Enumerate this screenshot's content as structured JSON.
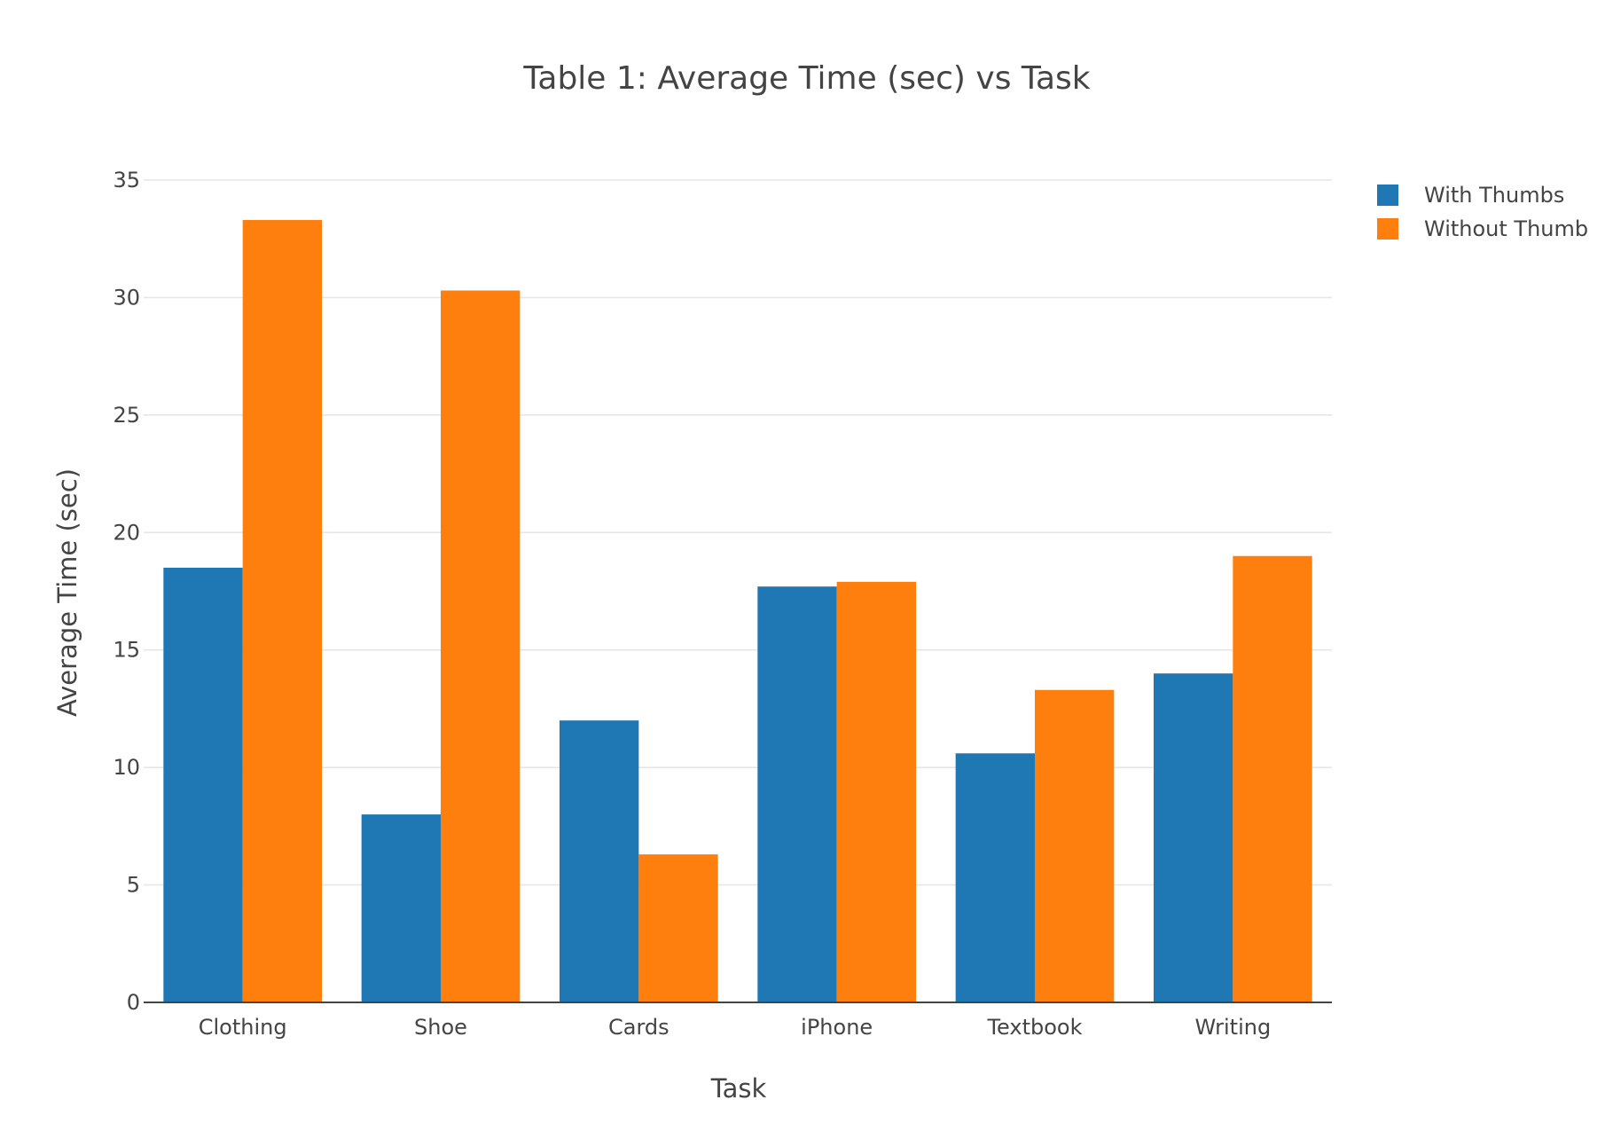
{
  "chart_data": {
    "type": "bar",
    "title": "Table 1: Average Time (sec) vs Task",
    "xlabel": "Task",
    "ylabel": "Average Time (sec)",
    "categories": [
      "Clothing",
      "Shoe",
      "Cards",
      "iPhone",
      "Textbook",
      "Writing"
    ],
    "series": [
      {
        "name": "With Thumbs",
        "color": "#1f77b4",
        "values": [
          18.5,
          8.0,
          12.0,
          17.7,
          10.6,
          14.0
        ]
      },
      {
        "name": "Without Thumb",
        "color": "#ff7f0e",
        "values": [
          33.3,
          30.3,
          6.3,
          17.9,
          13.3,
          19.0
        ]
      }
    ],
    "ylim": [
      0,
      35
    ],
    "yticks": [
      0,
      5,
      10,
      15,
      20,
      25,
      30,
      35
    ],
    "grid": true,
    "legend_position": "top-right"
  }
}
